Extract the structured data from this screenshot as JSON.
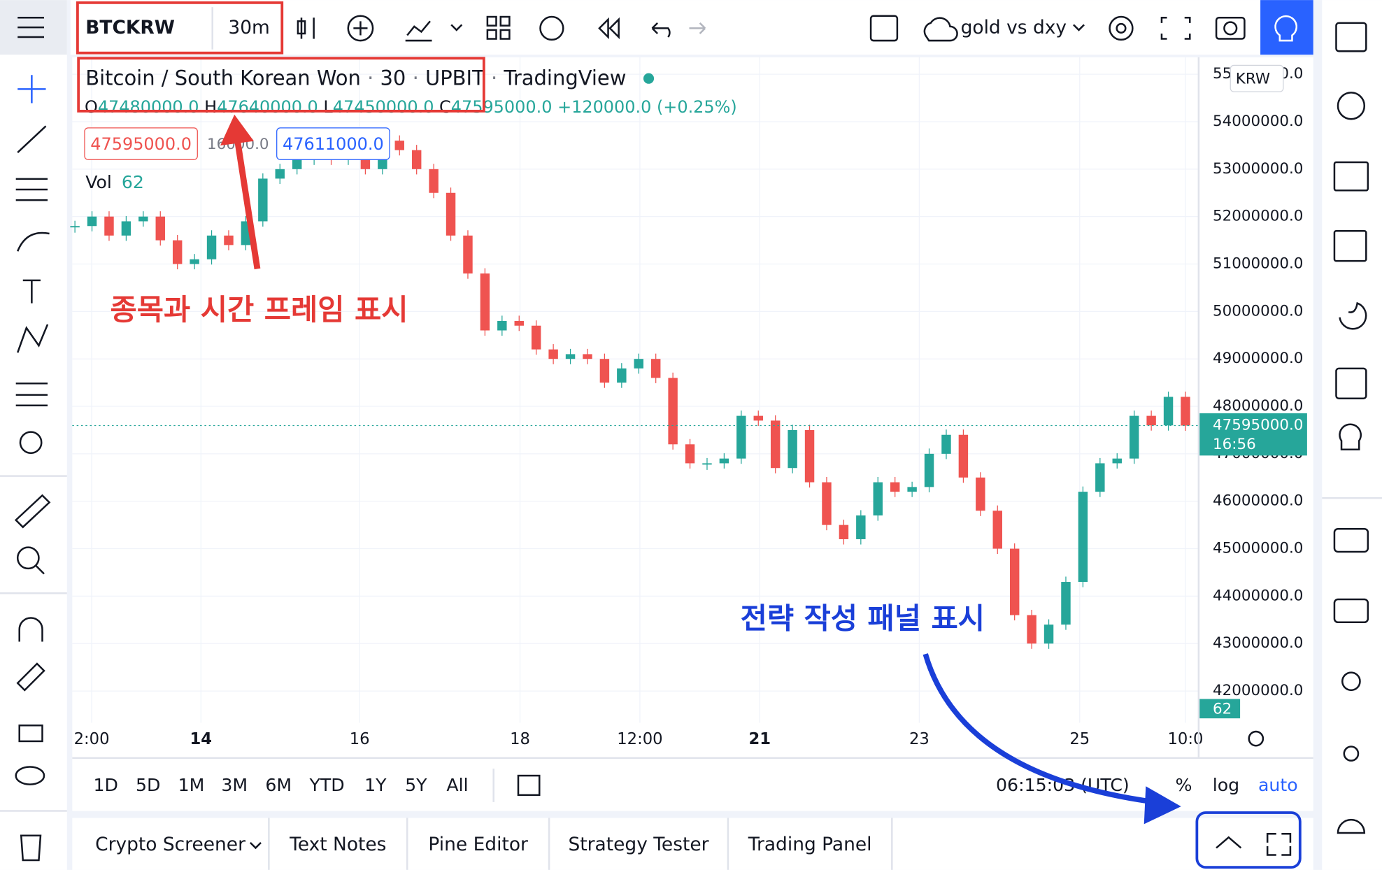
{
  "toolbar": {
    "symbol": "BTCKRW",
    "interval": "30m",
    "layout_name": "gold vs dxy"
  },
  "legend": {
    "title_parts": [
      "Bitcoin / South Korean Won",
      "30",
      "UPBIT",
      "TradingView"
    ],
    "ohlc": [
      {
        "key": "O",
        "value": "47480000.0"
      },
      {
        "key": "H",
        "value": "47640000.0"
      },
      {
        "key": "L",
        "value": "47450000.0"
      },
      {
        "key": "C",
        "value": "47595000.0"
      }
    ],
    "change": "+120000.0 (+0.25%)",
    "sell_price": "47595000.0",
    "spread": "16000.0",
    "buy_price": "47611000.0",
    "volume_label": "Vol",
    "volume_value": "62"
  },
  "chart": {
    "currency": "KRW",
    "ylim": [
      41331000,
      55356000
    ],
    "yticks": [
      {
        "value": 42000000,
        "label": "42000000.0"
      },
      {
        "value": 43000000,
        "label": "43000000.0"
      },
      {
        "value": 44000000,
        "label": "44000000.0"
      },
      {
        "value": 45000000,
        "label": "45000000.0"
      },
      {
        "value": 46000000,
        "label": "46000000.0"
      },
      {
        "value": 47000000,
        "label": "47000000.0"
      },
      {
        "value": 48000000,
        "label": "48000000.0"
      },
      {
        "value": 49000000,
        "label": "49000000.0"
      },
      {
        "value": 50000000,
        "label": "50000000.0"
      },
      {
        "value": 51000000,
        "label": "51000000.0"
      },
      {
        "value": 52000000,
        "label": "52000000.0"
      },
      {
        "value": 53000000,
        "label": "53000000.0"
      },
      {
        "value": 54000000,
        "label": "54000000.0"
      },
      {
        "value": 55000000,
        "label": "55000000.0"
      }
    ],
    "time_labels": [
      {
        "label": "2:00",
        "bold": false
      },
      {
        "label": "14",
        "bold": true
      },
      {
        "label": "16",
        "bold": false
      },
      {
        "label": "18",
        "bold": false
      },
      {
        "label": "12:00",
        "bold": false
      },
      {
        "label": "21",
        "bold": true
      },
      {
        "label": "23",
        "bold": false
      },
      {
        "label": "25",
        "bold": false
      },
      {
        "label": "10:0",
        "bold": false
      }
    ],
    "closes": [
      51800000,
      52000000,
      51600000,
      51900000,
      52000000,
      51500000,
      51000000,
      51100000,
      51600000,
      51400000,
      51900000,
      52800000,
      53000000,
      53200000,
      53400000,
      53200000,
      53500000,
      53000000,
      53600000,
      53400000,
      53000000,
      52500000,
      51600000,
      50800000,
      49600000,
      49800000,
      49700000,
      49200000,
      49000000,
      49100000,
      49000000,
      48500000,
      48800000,
      49000000,
      48600000,
      47200000,
      46800000,
      46800000,
      46900000,
      47800000,
      47700000,
      46700000,
      47500000,
      46400000,
      45500000,
      45200000,
      45700000,
      46400000,
      46200000,
      46300000,
      47000000,
      47400000,
      46500000,
      45800000,
      45000000,
      43600000,
      43000000,
      43400000,
      44300000,
      46200000,
      46800000,
      46900000,
      47800000,
      47600000,
      48200000,
      47595000
    ],
    "up_color": "#26a69a",
    "down_color": "#ef5350",
    "last_price": {
      "value": 47595000,
      "label": "47595000.0"
    },
    "countdown": "16:56",
    "last_volume": "62"
  },
  "range_bar": {
    "buttons": [
      "1D",
      "5D",
      "1M",
      "3M",
      "6M",
      "YTD",
      "1Y",
      "5Y",
      "All"
    ],
    "clock": "06:15:03 (UTC)",
    "scale_options": [
      "%",
      "log",
      "auto"
    ]
  },
  "tabs": [
    "Crypto Screener",
    "Text Notes",
    "Pine Editor",
    "Strategy Tester",
    "Trading Panel"
  ],
  "annotations": {
    "red": "종목과 시간 프레임 표시",
    "blue": "전략 작성 패널 표시"
  }
}
